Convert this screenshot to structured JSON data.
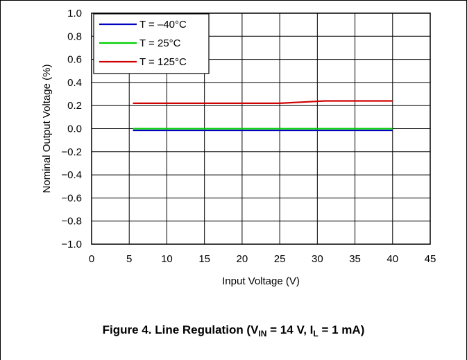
{
  "chart_data": {
    "type": "line",
    "xlabel": "Input Voltage (V)",
    "ylabel": "Nominal Output Voltage (%)",
    "xlim": [
      0,
      45
    ],
    "ylim": [
      -1.0,
      1.0
    ],
    "xticks": [
      "0",
      "5",
      "10",
      "15",
      "20",
      "25",
      "30",
      "35",
      "40",
      "45"
    ],
    "yticks": [
      "1.0",
      "0.8",
      "0.6",
      "0.4",
      "0.2",
      "0.0",
      "−0.2",
      "−0.4",
      "−0.6",
      "−0.8",
      "−1.0"
    ],
    "grid": true,
    "legend_position": "top-left",
    "series": [
      {
        "name": "T = –40°C",
        "color": "#0000c0",
        "x": [
          5.5,
          10,
          15,
          20,
          25,
          30,
          35,
          40
        ],
        "y": [
          -0.015,
          -0.015,
          -0.015,
          -0.015,
          -0.015,
          -0.015,
          -0.015,
          -0.015
        ]
      },
      {
        "name": "T = 25°C",
        "color": "#00d000",
        "x": [
          5.5,
          10,
          15,
          20,
          25,
          30,
          35,
          40
        ],
        "y": [
          0.0,
          0.0,
          0.0,
          0.0,
          0.0,
          0.0,
          0.0,
          0.0
        ]
      },
      {
        "name": "T = 125°C",
        "color": "#d00000",
        "x": [
          5.5,
          10,
          15,
          20,
          24,
          25,
          28,
          31,
          35,
          40
        ],
        "y": [
          0.22,
          0.22,
          0.22,
          0.22,
          0.22,
          0.22,
          0.23,
          0.24,
          0.24,
          0.24
        ]
      }
    ]
  },
  "caption": {
    "prefix": "Figure 4. Line Regulation (V",
    "sub1": "IN",
    "mid": " = 14 V, I",
    "sub2": "L",
    "suffix": " = 1 mA)"
  }
}
